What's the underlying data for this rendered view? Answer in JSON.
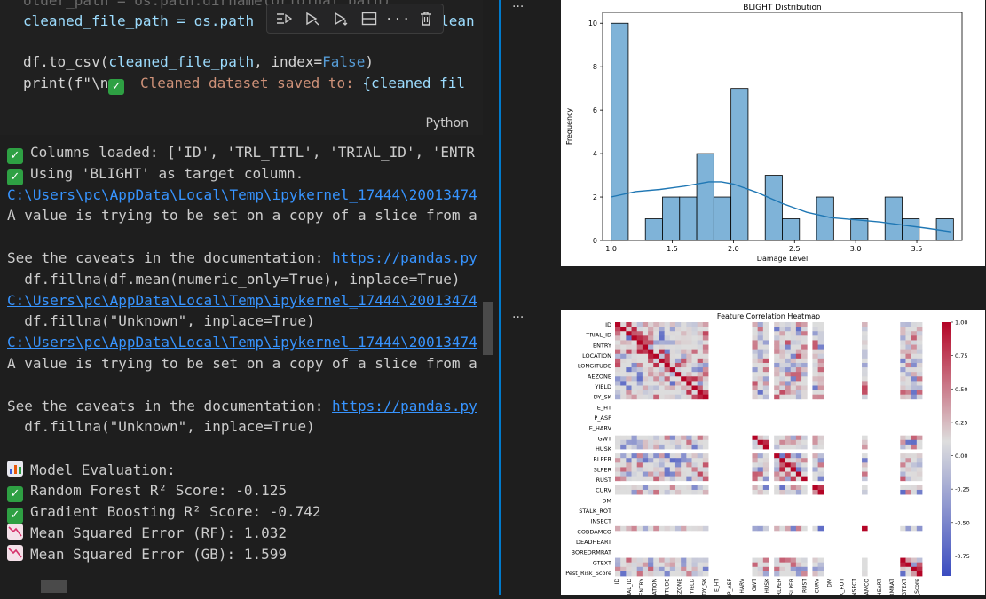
{
  "code": {
    "line1": {
      "pre": "older_path = os.path.dirname(original_path)"
    },
    "line2": {
      "pre": "cleaned_file_path = os.path",
      "post": "lean"
    },
    "line3": {
      "a": "df.to_csv(",
      "b": "cleaned_file_path",
      "c": ", index=",
      "d": "False",
      "e": ")"
    },
    "line4": {
      "a": "print(f\"\\n",
      "b": " Cleaned dataset saved to: ",
      "c": "{cleaned_fil"
    },
    "language": "Python"
  },
  "toolbar": {
    "run_above_icon": "run-above-icon",
    "run_cell_icon": "run-cell-icon",
    "run_below_icon": "run-below-icon",
    "split_icon": "split-cell-icon",
    "more_icon": "more-icon",
    "delete_icon": "trash-icon"
  },
  "output": {
    "lines": [
      {
        "icon": "check",
        "text": "Columns loaded: ['ID', 'TRL_TITL', 'TRIAL_ID', 'ENTR"
      },
      {
        "icon": "check",
        "text": "Using 'BLIGHT' as target column."
      },
      {
        "icon": "link",
        "text": "C:\\Users\\pc\\AppData\\Local\\Temp\\ipykernel_17444\\20013474"
      },
      {
        "icon": "",
        "text": "A value is trying to be set on a copy of a slice from a"
      },
      {
        "icon": "",
        "text": ""
      },
      {
        "icon": "caveat",
        "text": "See the caveats in the documentation: ",
        "link": "https://pandas.py"
      },
      {
        "icon": "",
        "text": "  df.fillna(df.mean(numeric_only=True), inplace=True)"
      },
      {
        "icon": "link",
        "text": "C:\\Users\\pc\\AppData\\Local\\Temp\\ipykernel_17444\\20013474"
      },
      {
        "icon": "",
        "text": "  df.fillna(\"Unknown\", inplace=True)"
      },
      {
        "icon": "link",
        "text": "C:\\Users\\pc\\AppData\\Local\\Temp\\ipykernel_17444\\20013474"
      },
      {
        "icon": "",
        "text": "A value is trying to be set on a copy of a slice from a"
      },
      {
        "icon": "",
        "text": ""
      },
      {
        "icon": "caveat",
        "text": "See the caveats in the documentation: ",
        "link": "https://pandas.py"
      },
      {
        "icon": "",
        "text": "  df.fillna(\"Unknown\", inplace=True)"
      },
      {
        "icon": "",
        "text": ""
      },
      {
        "icon": "chart",
        "text": "Model Evaluation:"
      },
      {
        "icon": "check",
        "text": "Random Forest R² Score: -0.125"
      },
      {
        "icon": "check",
        "text": "Gradient Boosting R² Score: -0.742"
      },
      {
        "icon": "down",
        "text": "Mean Squared Error (RF): 1.032"
      },
      {
        "icon": "down",
        "text": "Mean Squared Error (GB): 1.599"
      }
    ]
  },
  "right_panel": {
    "more_label": "···"
  },
  "chart_data": [
    {
      "type": "bar",
      "title": "BLIGHT Distribution",
      "xlabel": "Damage Level",
      "ylabel": "Frequency",
      "xlim": [
        0.93,
        3.87
      ],
      "ylim": [
        0,
        10.5
      ],
      "xticks": [
        "1.0",
        "1.5",
        "2.0",
        "2.5",
        "3.0",
        "3.5"
      ],
      "yticks": [
        "0",
        "2",
        "4",
        "6",
        "8",
        "10"
      ],
      "bin_width": 0.14,
      "bin_starts": [
        1.0,
        1.28,
        1.42,
        1.56,
        1.7,
        1.84,
        1.98,
        2.26,
        2.4,
        2.68,
        2.96,
        3.24,
        3.38,
        3.66
      ],
      "values": [
        10,
        1,
        2,
        2,
        4,
        2,
        7,
        3,
        1,
        2,
        1,
        2,
        1,
        1
      ],
      "kde_x": [
        1.0,
        1.2,
        1.4,
        1.6,
        1.8,
        1.9,
        2.0,
        2.2,
        2.4,
        2.6,
        2.8,
        3.0,
        3.2,
        3.4,
        3.6,
        3.78
      ],
      "kde_y": [
        2.0,
        2.25,
        2.35,
        2.5,
        2.7,
        2.7,
        2.6,
        2.2,
        1.7,
        1.3,
        1.05,
        0.95,
        0.85,
        0.7,
        0.55,
        0.4
      ]
    },
    {
      "type": "heatmap",
      "title": "Feature Correlation Heatmap",
      "labels": [
        "ID",
        "TRIAL_ID",
        "ENTRY",
        "LOCATION",
        "LONGITUDE",
        "AEZONE",
        "YIELD",
        "DY_SK",
        "E_HT",
        "P_ASP",
        "E_HARV",
        "GWT",
        "HUSK",
        "RLPER",
        "SLPER",
        "RUST",
        "CURV",
        "DM",
        "STALK_ROT",
        "INSECT",
        "COBDAMCO",
        "DEADHEART",
        "BOREDRMRAT",
        "GTEXT",
        "Pest_Risk_Score"
      ],
      "colorbar_ticks": [
        "1.00",
        "0.75",
        "0.50",
        "0.25",
        "0.00",
        "-0.25",
        "-0.50",
        "-0.75"
      ],
      "vmin": -0.9,
      "vmax": 1.0,
      "colors": {
        "neg": "#3b4cc0",
        "mid": "#dddddd",
        "pos": "#b40426"
      }
    }
  ]
}
